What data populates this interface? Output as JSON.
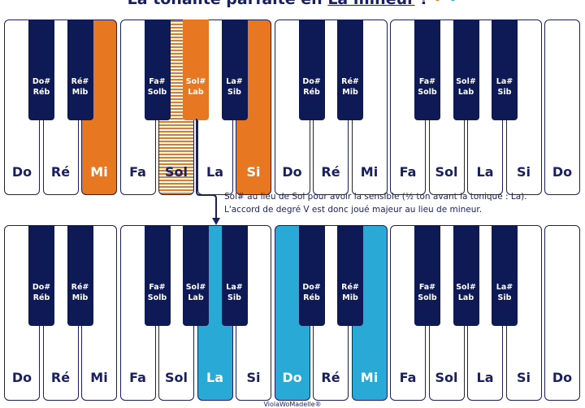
{
  "title": {
    "prefix": "La tonalité parfaite en",
    "underlined": "La mineur",
    "suffix": "!"
  },
  "colors": {
    "navy": "#1a1f5e",
    "orange": "#e87722",
    "blue": "#29a9d6"
  },
  "top_keyboard": {
    "white_keys": [
      {
        "label": "Do",
        "state": ""
      },
      {
        "label": "Ré",
        "state": ""
      },
      {
        "label": "Mi",
        "state": "orange"
      },
      {
        "label": "Fa",
        "state": ""
      },
      {
        "label": "Sol",
        "state": "striped"
      },
      {
        "label": "La",
        "state": ""
      },
      {
        "label": "Si",
        "state": "orange"
      },
      {
        "label": "Do",
        "state": ""
      },
      {
        "label": "Ré",
        "state": ""
      },
      {
        "label": "Mi",
        "state": ""
      },
      {
        "label": "Fa",
        "state": ""
      },
      {
        "label": "Sol",
        "state": ""
      },
      {
        "label": "La",
        "state": ""
      },
      {
        "label": "Si",
        "state": ""
      },
      {
        "label": "Do",
        "state": ""
      }
    ],
    "black_keys": [
      {
        "line1": "Do#",
        "line2": "Réb",
        "after_white": 0,
        "state": ""
      },
      {
        "line1": "Ré#",
        "line2": "Mib",
        "after_white": 1,
        "state": ""
      },
      {
        "line1": "Fa#",
        "line2": "Solb",
        "after_white": 3,
        "state": ""
      },
      {
        "line1": "Sol#",
        "line2": "Lab",
        "after_white": 4,
        "state": "orange"
      },
      {
        "line1": "La#",
        "line2": "Sib",
        "after_white": 5,
        "state": ""
      },
      {
        "line1": "Do#",
        "line2": "Réb",
        "after_white": 7,
        "state": ""
      },
      {
        "line1": "Ré#",
        "line2": "Mib",
        "after_white": 8,
        "state": ""
      },
      {
        "line1": "Fa#",
        "line2": "Solb",
        "after_white": 10,
        "state": ""
      },
      {
        "line1": "Sol#",
        "line2": "Lab",
        "after_white": 11,
        "state": ""
      },
      {
        "line1": "La#",
        "line2": "Sib",
        "after_white": 12,
        "state": ""
      }
    ]
  },
  "bottom_keyboard": {
    "white_keys": [
      {
        "label": "Do",
        "state": ""
      },
      {
        "label": "Ré",
        "state": ""
      },
      {
        "label": "Mi",
        "state": ""
      },
      {
        "label": "Fa",
        "state": ""
      },
      {
        "label": "Sol",
        "state": ""
      },
      {
        "label": "La",
        "state": "blue"
      },
      {
        "label": "Si",
        "state": ""
      },
      {
        "label": "Do",
        "state": "blue"
      },
      {
        "label": "Ré",
        "state": ""
      },
      {
        "label": "Mi",
        "state": "blue"
      },
      {
        "label": "Fa",
        "state": ""
      },
      {
        "label": "Sol",
        "state": ""
      },
      {
        "label": "La",
        "state": ""
      },
      {
        "label": "Si",
        "state": ""
      },
      {
        "label": "Do",
        "state": ""
      }
    ],
    "black_keys": [
      {
        "line1": "Do#",
        "line2": "Réb",
        "after_white": 0,
        "state": ""
      },
      {
        "line1": "Ré#",
        "line2": "Mib",
        "after_white": 1,
        "state": ""
      },
      {
        "line1": "Fa#",
        "line2": "Solb",
        "after_white": 3,
        "state": ""
      },
      {
        "line1": "Sol#",
        "line2": "Lab",
        "after_white": 4,
        "state": ""
      },
      {
        "line1": "La#",
        "line2": "Sib",
        "after_white": 5,
        "state": ""
      },
      {
        "line1": "Do#",
        "line2": "Réb",
        "after_white": 7,
        "state": ""
      },
      {
        "line1": "Ré#",
        "line2": "Mib",
        "after_white": 8,
        "state": ""
      },
      {
        "line1": "Fa#",
        "line2": "Solb",
        "after_white": 10,
        "state": ""
      },
      {
        "line1": "Sol#",
        "line2": "Lab",
        "after_white": 11,
        "state": ""
      },
      {
        "line1": "La#",
        "line2": "Sib",
        "after_white": 12,
        "state": ""
      }
    ]
  },
  "note": {
    "line1": "Sol# au lieu de Sol pour avoir la sensible (½ ton avant la tonique : La).",
    "line2": "L'accord de degré V est donc joué majeur au lieu de mineur."
  },
  "footer": "ViolaWoMadelle®"
}
